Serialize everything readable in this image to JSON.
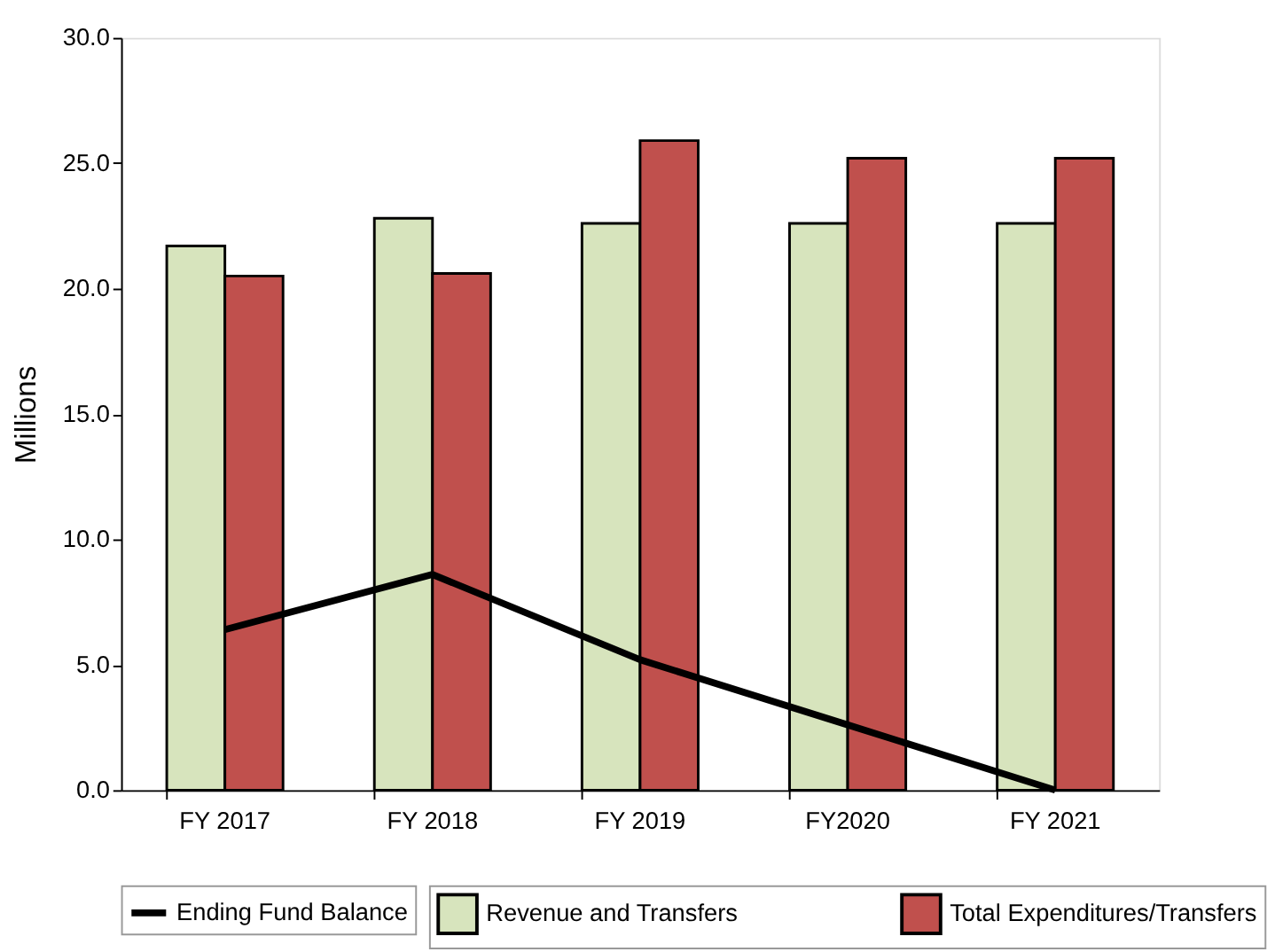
{
  "chart_data": {
    "type": "bar",
    "ylabel": "Millions",
    "categories": [
      "FY 2017",
      "FY 2018",
      "FY 2019",
      "FY2020",
      "FY 2021"
    ],
    "series": [
      {
        "name": "Revenue and Transfers",
        "color": "#d7e4bd",
        "values": [
          21.7,
          22.8,
          22.6,
          22.6,
          22.6
        ]
      },
      {
        "name": "Total Expenditures/Transfers",
        "color": "#c0504d",
        "values": [
          20.5,
          20.6,
          25.9,
          25.2,
          25.2
        ]
      },
      {
        "name": "Ending Fund Balance",
        "type": "line",
        "color": "#000000",
        "values": [
          6.4,
          8.6,
          5.2,
          2.6,
          0.0
        ]
      }
    ],
    "ylim": [
      0,
      30
    ],
    "yticks": [
      {
        "value": 0,
        "label": "0.0"
      },
      {
        "value": 5,
        "label": "5.0"
      },
      {
        "value": 10,
        "label": "10.0"
      },
      {
        "value": 15,
        "label": "15.0"
      },
      {
        "value": 20,
        "label": "20.0"
      },
      {
        "value": 25,
        "label": "25.0"
      },
      {
        "value": 30,
        "label": "30.0"
      }
    ],
    "grid": false,
    "legend": "bottom",
    "marker": "none",
    "line_style": "solid"
  }
}
